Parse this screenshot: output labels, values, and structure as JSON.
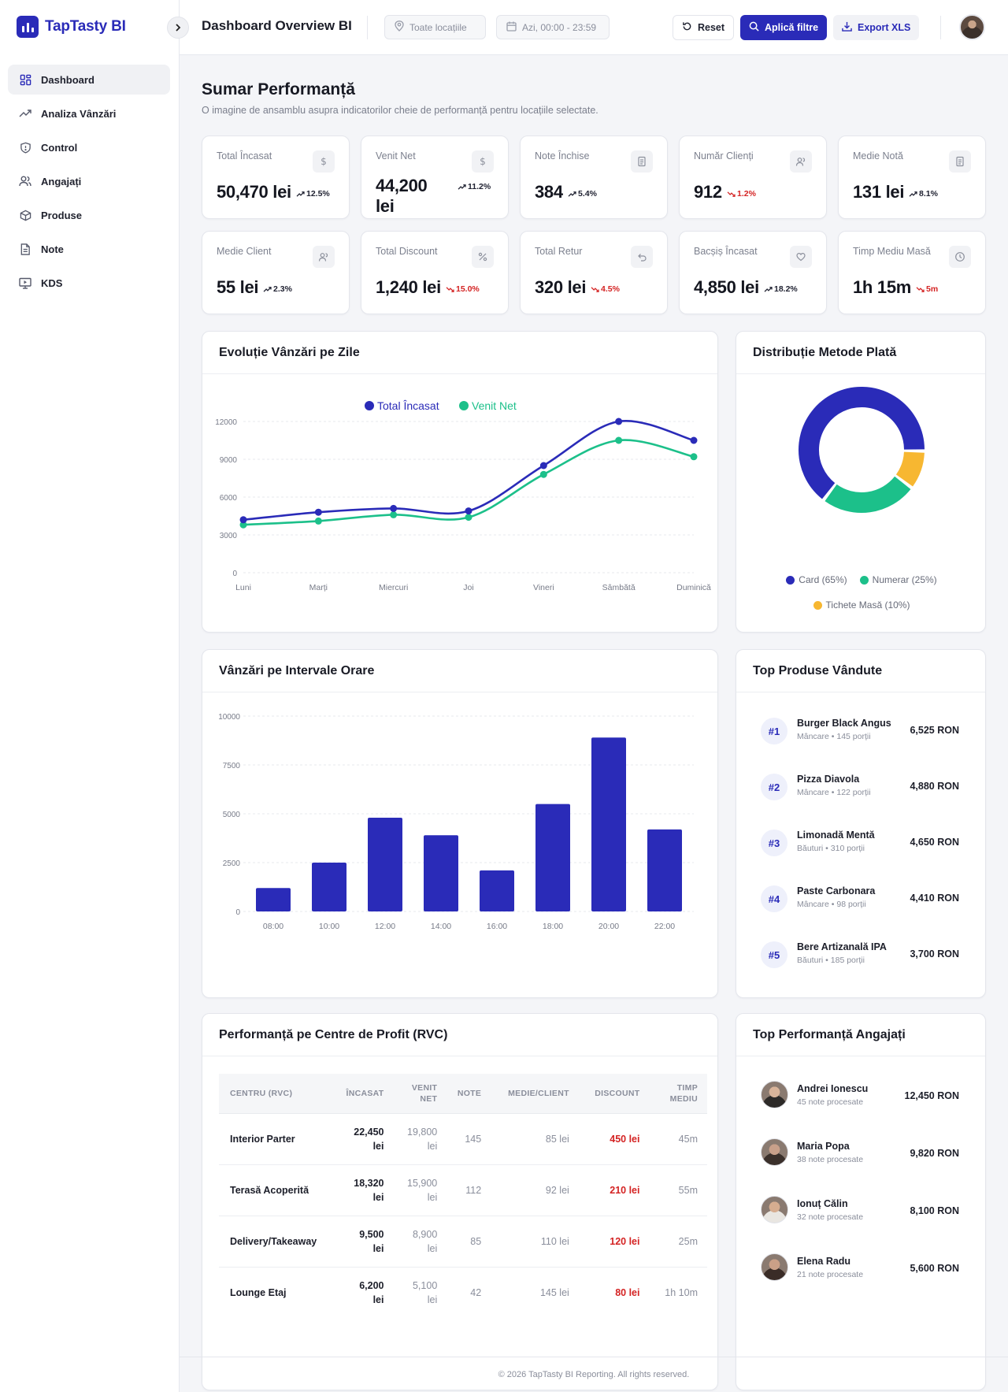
{
  "brand": {
    "name": "TapTasty BI"
  },
  "sidebar": {
    "items": [
      {
        "label": "Dashboard",
        "icon": "dashboard-icon",
        "active": true
      },
      {
        "label": "Analiza Vânzări",
        "icon": "trending-up-icon"
      },
      {
        "label": "Control",
        "icon": "shield-icon"
      },
      {
        "label": "Angajați",
        "icon": "users-icon"
      },
      {
        "label": "Produse",
        "icon": "box-icon"
      },
      {
        "label": "Note",
        "icon": "file-text-icon"
      },
      {
        "label": "KDS",
        "icon": "monitor-icon"
      }
    ]
  },
  "header": {
    "title": "Dashboard Overview BI",
    "location_placeholder": "Toate locațiile",
    "date_range": "Azi, 00:00 - 23:59",
    "reset_label": "Reset",
    "apply_label": "Aplică filtre",
    "export_label": "Export XLS"
  },
  "summary": {
    "title": "Sumar Performanță",
    "subtitle": "O imagine de ansamblu asupra indicatorilor cheie de performanță pentru locațiile selectate."
  },
  "kpis": [
    {
      "label": "Total Încasat",
      "value": "50,470 lei",
      "trend": "12.5%",
      "direction": "up",
      "icon": "dollar-icon"
    },
    {
      "label": "Venit Net",
      "value": "44,200 lei",
      "trend": "11.2%",
      "direction": "up",
      "icon": "dollar-icon"
    },
    {
      "label": "Note Închise",
      "value": "384",
      "trend": "5.4%",
      "direction": "up",
      "icon": "receipt-icon"
    },
    {
      "label": "Număr Clienți",
      "value": "912",
      "trend": "1.2%",
      "direction": "down",
      "icon": "users-icon"
    },
    {
      "label": "Medie Notă",
      "value": "131 lei",
      "trend": "8.1%",
      "direction": "up",
      "icon": "receipt-icon"
    },
    {
      "label": "Medie Client",
      "value": "55 lei",
      "trend": "2.3%",
      "direction": "up",
      "icon": "users-icon"
    },
    {
      "label": "Total Discount",
      "value": "1,240 lei",
      "trend": "15.0%",
      "direction": "down",
      "icon": "percent-icon"
    },
    {
      "label": "Total Retur",
      "value": "320 lei",
      "trend": "4.5%",
      "direction": "down",
      "icon": "undo-icon"
    },
    {
      "label": "Bacșiș Încasat",
      "value": "4,850 lei",
      "trend": "18.2%",
      "direction": "up",
      "icon": "heart-hand-icon"
    },
    {
      "label": "Timp Mediu Masă",
      "value": "1h 15m",
      "trend": "5m",
      "direction": "down",
      "icon": "clock-icon"
    }
  ],
  "colors": {
    "accent": "#2a2bb8",
    "green": "#1cc08a",
    "orange": "#f7b731",
    "red": "#d42323"
  },
  "chart_data": [
    {
      "type": "line",
      "title": "Evoluție Vânzări pe Zile",
      "categories": [
        "Luni",
        "Marți",
        "Miercuri",
        "Joi",
        "Vineri",
        "Sâmbătă",
        "Duminică"
      ],
      "series": [
        {
          "name": "Total Încasat",
          "color": "#2a2bb8",
          "values": [
            4200,
            4800,
            5100,
            4900,
            8500,
            12000,
            10500
          ]
        },
        {
          "name": "Venit Net",
          "color": "#1cc08a",
          "values": [
            3800,
            4100,
            4600,
            4400,
            7800,
            10500,
            9200
          ]
        }
      ],
      "yticks": [
        "0",
        "3000",
        "6000",
        "9000",
        "12000"
      ],
      "ylim": [
        0,
        12000
      ],
      "legend": "top-center",
      "grid": true
    },
    {
      "type": "pie",
      "title": "Distribuție Metode Plată",
      "slices": [
        {
          "name": "Card (65%)",
          "value": 65,
          "color": "#2a2bb8"
        },
        {
          "name": "Numerar (25%)",
          "value": 25,
          "color": "#1cc08a"
        },
        {
          "name": "Tichete Masă (10%)",
          "value": 10,
          "color": "#f7b731"
        }
      ],
      "legend": "bottom"
    },
    {
      "type": "bar",
      "title": "Vânzări pe Intervale Orare",
      "categories": [
        "08:00",
        "10:00",
        "12:00",
        "14:00",
        "16:00",
        "18:00",
        "20:00",
        "22:00"
      ],
      "values": [
        1200,
        2500,
        4800,
        3900,
        2100,
        5500,
        8900,
        4200
      ],
      "yticks": [
        "0",
        "2500",
        "5000",
        "7500",
        "10000"
      ],
      "ylim": [
        0,
        10000
      ],
      "color": "#2a2bb8",
      "grid": true
    }
  ],
  "top_products": {
    "title": "Top Produse Vândute",
    "items": [
      {
        "rank": "#1",
        "name": "Burger Black Angus",
        "meta": "Mâncare • 145 porții",
        "amount": "6,525 RON"
      },
      {
        "rank": "#2",
        "name": "Pizza Diavola",
        "meta": "Mâncare • 122 porții",
        "amount": "4,880 RON"
      },
      {
        "rank": "#3",
        "name": "Limonadă Mentă",
        "meta": "Băuturi • 310 porții",
        "amount": "4,650 RON"
      },
      {
        "rank": "#4",
        "name": "Paste Carbonara",
        "meta": "Mâncare • 98 porții",
        "amount": "4,410 RON"
      },
      {
        "rank": "#5",
        "name": "Bere Artizanală IPA",
        "meta": "Băuturi • 185 porții",
        "amount": "3,700 RON"
      }
    ]
  },
  "rvc": {
    "title": "Performanță pe Centre de Profit (RVC)",
    "columns": [
      "Centru (RVC)",
      "Încasat",
      "Venit Net",
      "Note",
      "Medie/Client",
      "Discount",
      "Timp Mediu"
    ],
    "rows": [
      [
        "Interior Parter",
        "22,450 lei",
        "19,800 lei",
        "145",
        "85 lei",
        "450 lei",
        "45m"
      ],
      [
        "Terasă Acoperită",
        "18,320 lei",
        "15,900 lei",
        "112",
        "92 lei",
        "210 lei",
        "55m"
      ],
      [
        "Delivery/Takeaway",
        "9,500 lei",
        "8,900 lei",
        "85",
        "110 lei",
        "120 lei",
        "25m"
      ],
      [
        "Lounge Etaj",
        "6,200 lei",
        "5,100 lei",
        "42",
        "145 lei",
        "80 lei",
        "1h 10m"
      ]
    ]
  },
  "top_employees": {
    "title": "Top Performanță Angajați",
    "items": [
      {
        "name": "Andrei Ionescu",
        "meta": "45 note procesate",
        "amount": "12,450 RON"
      },
      {
        "name": "Maria Popa",
        "meta": "38 note procesate",
        "amount": "9,820 RON"
      },
      {
        "name": "Ionuț Călin",
        "meta": "32 note procesate",
        "amount": "8,100 RON"
      },
      {
        "name": "Elena Radu",
        "meta": "21 note procesate",
        "amount": "5,600 RON"
      }
    ]
  },
  "footer": {
    "text": "© 2026 TapTasty BI Reporting. All rights reserved."
  }
}
